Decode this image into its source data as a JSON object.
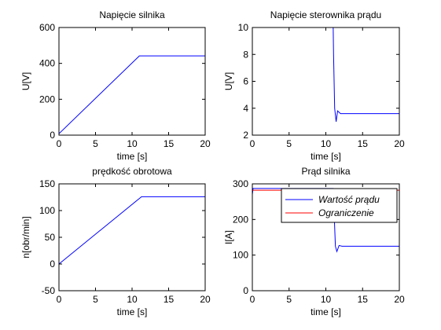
{
  "figure": {
    "background": "#ffffff"
  },
  "chart_data": [
    {
      "type": "line",
      "title": "Napięcie silnika",
      "xlabel": "time [s]",
      "ylabel": "U[V]",
      "xlim": [
        0,
        20
      ],
      "ylim": [
        0,
        600
      ],
      "xticks": [
        "0",
        "5",
        "10",
        "15",
        "20"
      ],
      "yticks": [
        "0",
        "200",
        "400",
        "600"
      ],
      "grid": false,
      "series": [
        {
          "color": "#0000ff",
          "x": [
            0,
            11,
            20
          ],
          "y": [
            8,
            442,
            442
          ]
        }
      ]
    },
    {
      "type": "line",
      "title": "Napięcie sterownika prądu",
      "xlabel": "time [s]",
      "ylabel": "U[V]",
      "xlim": [
        0,
        20
      ],
      "ylim": [
        2,
        10
      ],
      "xticks": [
        "0",
        "5",
        "10",
        "15",
        "20"
      ],
      "yticks": [
        "2",
        "4",
        "6",
        "8",
        "10"
      ],
      "grid": false,
      "series": [
        {
          "color": "#0000ff",
          "x": [
            11,
            11.05,
            11.2,
            11.4,
            11.6,
            12,
            20
          ],
          "y": [
            10,
            8,
            4,
            3,
            3.8,
            3.6,
            3.6
          ]
        }
      ]
    },
    {
      "type": "line",
      "title": "prędkość obrotowa",
      "xlabel": "time [s]",
      "ylabel": "n[obr/min]",
      "xlim": [
        0,
        20
      ],
      "ylim": [
        -50,
        150
      ],
      "xticks": [
        "0",
        "5",
        "10",
        "15",
        "20"
      ],
      "yticks": [
        "-50",
        "0",
        "50",
        "100",
        "150"
      ],
      "grid": false,
      "series": [
        {
          "color": "#0000ff",
          "x": [
            0,
            11.3,
            20
          ],
          "y": [
            0,
            126,
            126
          ]
        }
      ]
    },
    {
      "type": "line",
      "title": "Prąd silnika",
      "xlabel": "time [s]",
      "ylabel": "I[A]",
      "xlim": [
        0,
        20
      ],
      "ylim": [
        0,
        300
      ],
      "xticks": [
        "0",
        "5",
        "10",
        "15",
        "20"
      ],
      "yticks": [
        "0",
        "100",
        "200",
        "300"
      ],
      "grid": false,
      "legend": "top-right",
      "series": [
        {
          "name": "Wartość prądu",
          "color": "#0000ff",
          "x": [
            0,
            0.1,
            11,
            11.05,
            11.3,
            11.5,
            11.8,
            12.2,
            20
          ],
          "y": [
            270,
            287,
            287,
            260,
            125,
            110,
            127,
            125,
            125
          ]
        },
        {
          "name": "Ograniczenie",
          "color": "#ff0000",
          "x": [
            0,
            20
          ],
          "y": [
            282,
            282
          ]
        }
      ]
    }
  ]
}
